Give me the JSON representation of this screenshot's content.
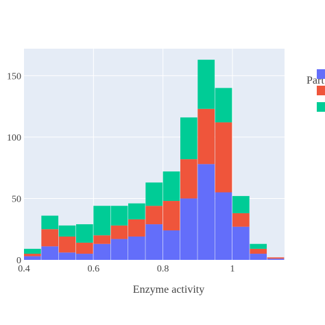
{
  "chart_data": {
    "type": "bar",
    "barmode": "stack",
    "xlabel": "Enzyme activity",
    "ylabel": "",
    "xlim": [
      0.4,
      1.15
    ],
    "ylim": [
      0,
      172
    ],
    "x_ticks": [
      0.4,
      0.6,
      0.8,
      1.0
    ],
    "x_tick_labels": [
      "0.4",
      "0.6",
      "0.8",
      "1"
    ],
    "y_ticks": [
      0,
      50,
      100,
      150
    ],
    "y_tick_labels": [
      "0",
      "50",
      "100",
      "150"
    ],
    "bin_edges": [
      0.4,
      0.45,
      0.5,
      0.55,
      0.6,
      0.65,
      0.7,
      0.75,
      0.8,
      0.85,
      0.9,
      0.95,
      1.0,
      1.05,
      1.1,
      1.15
    ],
    "legend_title": "Part",
    "legend_placement": "top-right",
    "grid": true,
    "series": [
      {
        "color": "#636efa",
        "values": [
          3,
          11,
          6,
          5,
          13,
          17,
          19,
          29,
          24,
          50,
          78,
          55,
          27,
          5,
          1
        ]
      },
      {
        "color": "#ef553b",
        "values": [
          2,
          14,
          13,
          9,
          7,
          11,
          14,
          15,
          24,
          32,
          45,
          57,
          11,
          4,
          1
        ]
      },
      {
        "color": "#00cc96",
        "values": [
          4,
          11,
          9,
          15,
          24,
          16,
          13,
          19,
          24,
          34,
          40,
          28,
          14,
          4,
          0
        ]
      }
    ]
  }
}
